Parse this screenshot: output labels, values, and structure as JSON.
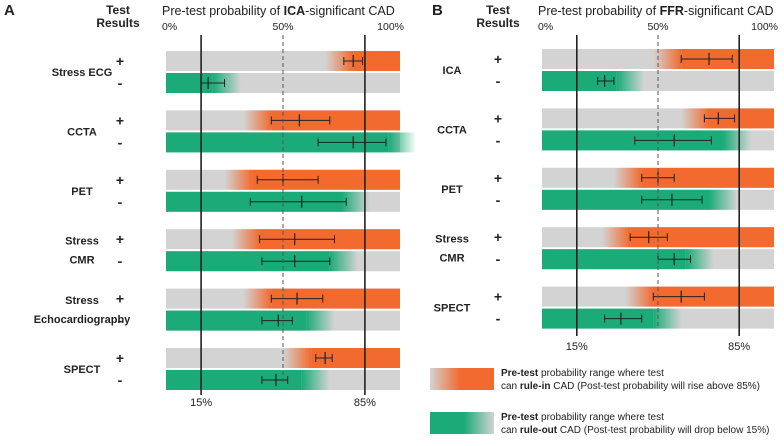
{
  "colors": {
    "gray": "#d3d3d3",
    "orange": "#f26a2e",
    "green": "#1aab78",
    "line": "#222222"
  },
  "chart_data": [
    {
      "type": "bar",
      "panel": "A",
      "header": [
        "Test",
        "Results"
      ],
      "title_pre": "Pre-test probability of ",
      "title_bold": "ICA",
      "title_post": "-significant CAD",
      "xlim": [
        0,
        100
      ],
      "ticks": [
        "0%",
        "50%",
        "100%"
      ],
      "reference_lines": [
        15,
        85
      ],
      "reference_labels": [
        "15%",
        "85%"
      ],
      "dashed_line": 50,
      "groups": [
        {
          "test": [
            "Stress ECG"
          ],
          "positive": {
            "sign": "+",
            "rule_in_from": 80,
            "estimate": 80,
            "ci": [
              76,
              84
            ]
          },
          "negative": {
            "sign": "-",
            "rule_out_to": 20,
            "estimate": 18,
            "ci": [
              15,
              25
            ]
          }
        },
        {
          "test": [
            "CCTA"
          ],
          "positive": {
            "sign": "+",
            "rule_in_from": 45,
            "estimate": 57,
            "ci": [
              45,
              70
            ]
          },
          "negative": {
            "sign": "-",
            "rule_out_to": 95,
            "estimate": 80,
            "ci": [
              65,
              94
            ]
          }
        },
        {
          "test": [
            "PET"
          ],
          "positive": {
            "sign": "+",
            "rule_in_from": 37,
            "estimate": 50,
            "ci": [
              39,
              65
            ]
          },
          "negative": {
            "sign": "-",
            "rule_out_to": 75,
            "estimate": 58,
            "ci": [
              36,
              77
            ]
          }
        },
        {
          "test": [
            "Stress",
            "CMR"
          ],
          "positive": {
            "sign": "+",
            "rule_in_from": 40,
            "estimate": 55,
            "ci": [
              40,
              72
            ]
          },
          "negative": {
            "sign": "-",
            "rule_out_to": 70,
            "estimate": 55,
            "ci": [
              41,
              70
            ]
          }
        },
        {
          "test": [
            "Stress",
            "Echocardiography"
          ],
          "positive": {
            "sign": "+",
            "rule_in_from": 45,
            "estimate": 56,
            "ci": [
              45,
              67
            ]
          },
          "negative": {
            "sign": "-",
            "rule_out_to": 60,
            "estimate": 48,
            "ci": [
              41,
              54
            ]
          }
        },
        {
          "test": [
            "SPECT"
          ],
          "positive": {
            "sign": "+",
            "rule_in_from": 62,
            "estimate": 68,
            "ci": [
              64,
              71
            ]
          },
          "negative": {
            "sign": "-",
            "rule_out_to": 58,
            "estimate": 47,
            "ci": [
              41,
              52
            ]
          }
        }
      ]
    },
    {
      "type": "bar",
      "panel": "B",
      "header": [
        "Test",
        "Results"
      ],
      "title_pre": "Pre-test probability of ",
      "title_bold": "FFR",
      "title_post": "-significant CAD",
      "xlim": [
        0,
        100
      ],
      "ticks": [
        "0%",
        "50%",
        "100%"
      ],
      "reference_lines": [
        15,
        85
      ],
      "reference_labels": [
        "15%",
        "85%"
      ],
      "dashed_line": 50,
      "groups": [
        {
          "test": [
            "ICA"
          ],
          "positive": {
            "sign": "+",
            "rule_in_from": 60,
            "estimate": 72,
            "ci": [
              60,
              82
            ]
          },
          "negative": {
            "sign": "-",
            "rule_out_to": 32,
            "estimate": 27,
            "ci": [
              24,
              31
            ]
          }
        },
        {
          "test": [
            "CCTA"
          ],
          "positive": {
            "sign": "+",
            "rule_in_from": 72,
            "estimate": 76,
            "ci": [
              70,
              83
            ]
          },
          "negative": {
            "sign": "-",
            "rule_out_to": 78,
            "estimate": 57,
            "ci": [
              40,
              73
            ]
          }
        },
        {
          "test": [
            "PET"
          ],
          "positive": {
            "sign": "+",
            "rule_in_from": 43,
            "estimate": 50,
            "ci": [
              43,
              57
            ]
          },
          "negative": {
            "sign": "-",
            "rule_out_to": 72,
            "estimate": 56,
            "ci": [
              43,
              69
            ]
          }
        },
        {
          "test": [
            "Stress",
            "CMR"
          ],
          "positive": {
            "sign": "+",
            "rule_in_from": 38,
            "estimate": 46,
            "ci": [
              38,
              54
            ]
          },
          "negative": {
            "sign": "-",
            "rule_out_to": 62,
            "estimate": 57,
            "ci": [
              50,
              64
            ]
          }
        },
        {
          "test": [
            "SPECT"
          ],
          "positive": {
            "sign": "+",
            "rule_in_from": 48,
            "estimate": 60,
            "ci": [
              48,
              70
            ]
          },
          "negative": {
            "sign": "-",
            "rule_out_to": 48,
            "estimate": 34,
            "ci": [
              27,
              43
            ]
          }
        }
      ]
    }
  ],
  "legend": [
    {
      "kind": "orange",
      "bold": "Pre-test",
      "line1": " probability range where test",
      "line2_pre": "can ",
      "line2_bold": "rule-in",
      "line2_post": " CAD (Post-test probability will rise above 85%)"
    },
    {
      "kind": "green",
      "bold": "Pre-test",
      "line1": " probability range where test",
      "line2_pre": "can ",
      "line2_bold": "rule-out",
      "line2_post": " CAD (Post-test probability will drop below 15%)"
    }
  ]
}
